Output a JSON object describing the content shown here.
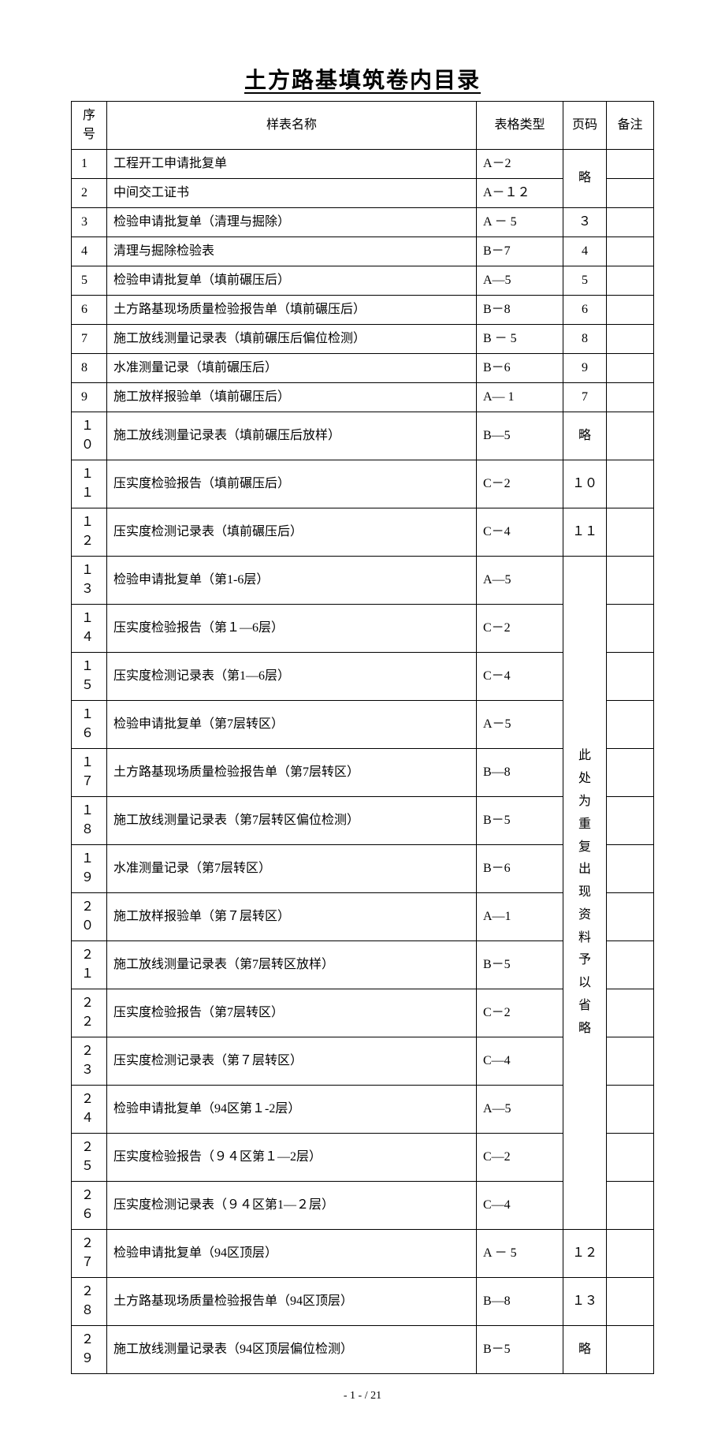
{
  "title": "土方路基填筑卷内目录",
  "columns": {
    "seq": "序号",
    "name": "样表名称",
    "type": "表格类型",
    "page": "页码",
    "note": "备注"
  },
  "rows": [
    {
      "seq": "1",
      "name": "工程开工申请批复单",
      "type": "A－2",
      "page": ""
    },
    {
      "seq": "2",
      "name": "中间交工证书",
      "type": "A－１２",
      "page": ""
    },
    {
      "seq": "3",
      "name": "检验申请批复单（清理与掘除）",
      "type": "A － 5",
      "page": "３"
    },
    {
      "seq": "4",
      "name": "清理与掘除检验表",
      "type": "B－7",
      "page": "4"
    },
    {
      "seq": "5",
      "name": "检验申请批复单（填前碾压后）",
      "type": "A—5",
      "page": "5"
    },
    {
      "seq": "6",
      "name": "土方路基现场质量检验报告单（填前碾压后）",
      "type": "B－8",
      "page": "6"
    },
    {
      "seq": "7",
      "name": "施工放线测量记录表（填前碾压后偏位检测）",
      "type": "B － 5",
      "page": "8"
    },
    {
      "seq": "8",
      "name": "水准测量记录（填前碾压后）",
      "type": "B－6",
      "page": "9"
    },
    {
      "seq": "9",
      "name": "施工放样报验单（填前碾压后）",
      "type": "A— 1",
      "page": "7"
    },
    {
      "seq": "１０",
      "name": "施工放线测量记录表（填前碾压后放样）",
      "type": "B—5",
      "page": "略"
    },
    {
      "seq": "１１",
      "name": "压实度检验报告（填前碾压后）",
      "type": "C－2",
      "page": "１０"
    },
    {
      "seq": "１２",
      "name": "压实度检测记录表（填前碾压后）",
      "type": "C－4",
      "page": "１１"
    },
    {
      "seq": "１３",
      "name": "检验申请批复单（第1-6层）",
      "type": "A—5",
      "page": ""
    },
    {
      "seq": "１４",
      "name": "压实度检验报告（第１—6层）",
      "type": "C－2",
      "page": ""
    },
    {
      "seq": "１５",
      "name": "压实度检测记录表（第1—6层）",
      "type": "C－4",
      "page": ""
    },
    {
      "seq": "１６",
      "name": "检验申请批复单（第7层转区）",
      "type": "A－5",
      "page": ""
    },
    {
      "seq": "１７",
      "name": "土方路基现场质量检验报告单（第7层转区）",
      "type": "B—8",
      "page": ""
    },
    {
      "seq": "１８",
      "name": "施工放线测量记录表（第7层转区偏位检测）",
      "type": "B－5",
      "page": ""
    },
    {
      "seq": "１９",
      "name": "水准测量记录（第7层转区）",
      "type": "B－6",
      "page": ""
    },
    {
      "seq": "２０",
      "name": "施工放样报验单（第７层转区）",
      "type": "A—1",
      "page": ""
    },
    {
      "seq": "２１",
      "name": "施工放线测量记录表（第7层转区放样）",
      "type": "B－5",
      "page": ""
    },
    {
      "seq": "２２",
      "name": "压实度检验报告（第7层转区）",
      "type": "C－2",
      "page": ""
    },
    {
      "seq": "２３",
      "name": "压实度检测记录表（第７层转区）",
      "type": "C—4",
      "page": ""
    },
    {
      "seq": "２４",
      "name": "检验申请批复单（94区第１-2层）",
      "type": "A—5",
      "page": ""
    },
    {
      "seq": "２５",
      "name": "压实度检验报告（９４区第１—2层）",
      "type": "C—2",
      "page": ""
    },
    {
      "seq": "２６",
      "name": "压实度检测记录表（９４区第1—２层）",
      "type": "C—4",
      "page": ""
    },
    {
      "seq": "２７",
      "name": "检验申请批复单（94区顶层）",
      "type": "A － 5",
      "page": "１２"
    },
    {
      "seq": "２８",
      "name": "土方路基现场质量检验报告单（94区顶层）",
      "type": "B—8",
      "page": "１３"
    },
    {
      "seq": "２９",
      "name": "施工放线测量记录表（94区顶层偏位检测）",
      "type": "B－5",
      "page": "略"
    }
  ],
  "merged_page_1": "略",
  "merged_page_2": "此处为重复出现资料予以省略",
  "footer": "- 1 - / 21"
}
